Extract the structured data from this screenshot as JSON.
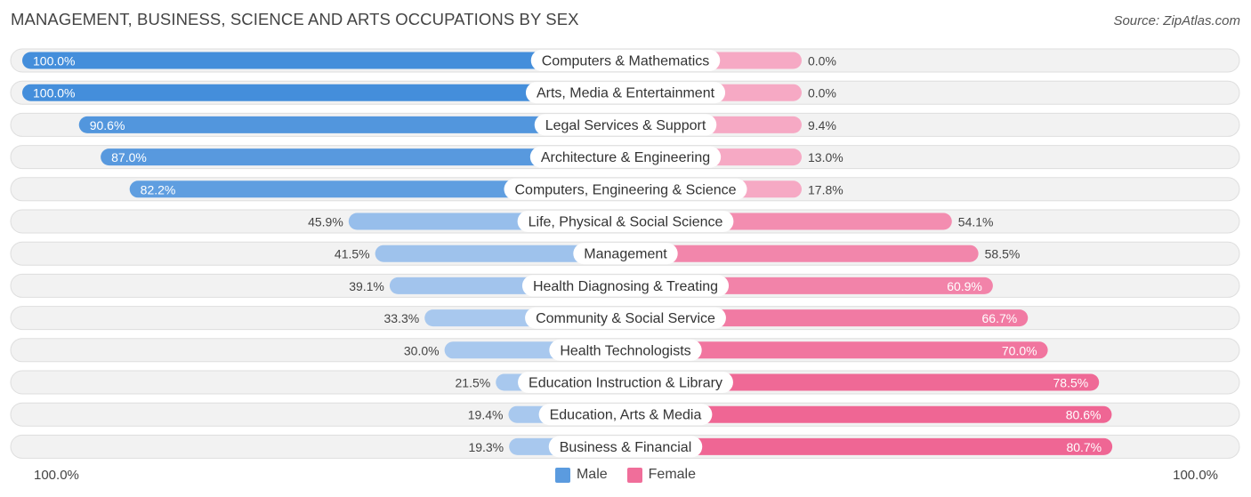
{
  "title": "MANAGEMENT, BUSINESS, SCIENCE AND ARTS OCCUPATIONS BY SEX",
  "source": "Source: ZipAtlas.com",
  "axis": {
    "left_label": "100.0%",
    "right_label": "100.0%"
  },
  "legend": [
    {
      "label": "Male",
      "color": "#5b9bdf"
    },
    {
      "label": "Female",
      "color": "#f06e9a"
    }
  ],
  "chart_data": {
    "type": "bar",
    "orientation": "horizontal-diverging",
    "title": "MANAGEMENT, BUSINESS, SCIENCE AND ARTS OCCUPATIONS BY SEX",
    "xlim": [
      -100,
      100
    ],
    "categories": [
      "Computers & Mathematics",
      "Arts, Media & Entertainment",
      "Legal Services & Support",
      "Architecture & Engineering",
      "Computers, Engineering & Science",
      "Life, Physical & Social Science",
      "Management",
      "Health Diagnosing & Treating",
      "Community & Social Service",
      "Health Technologists",
      "Education Instruction & Library",
      "Education, Arts & Media",
      "Business & Financial"
    ],
    "series": [
      {
        "name": "Male",
        "values": [
          100.0,
          100.0,
          90.6,
          87.0,
          82.2,
          45.9,
          41.5,
          39.1,
          33.3,
          30.0,
          21.5,
          19.4,
          19.3
        ],
        "labels": [
          "100.0%",
          "100.0%",
          "90.6%",
          "87.0%",
          "82.2%",
          "45.9%",
          "41.5%",
          "39.1%",
          "33.3%",
          "30.0%",
          "21.5%",
          "19.4%",
          "19.3%"
        ]
      },
      {
        "name": "Female",
        "values": [
          0.0,
          0.0,
          9.4,
          13.0,
          17.8,
          54.1,
          58.5,
          60.9,
          66.7,
          70.0,
          78.5,
          80.6,
          80.7
        ],
        "labels": [
          "0.0%",
          "0.0%",
          "9.4%",
          "13.0%",
          "17.8%",
          "54.1%",
          "58.5%",
          "60.9%",
          "66.7%",
          "70.0%",
          "78.5%",
          "80.6%",
          "80.7%"
        ]
      }
    ]
  }
}
